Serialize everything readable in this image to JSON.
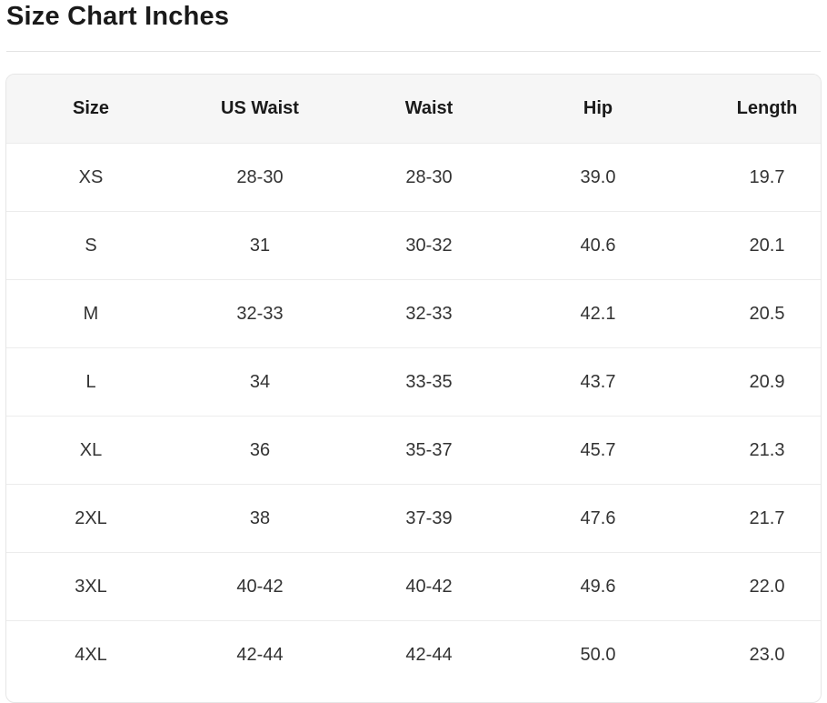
{
  "header": {
    "title": "Size Chart Inches"
  },
  "table": {
    "columns": [
      "Size",
      "US Waist",
      "Waist",
      "Hip",
      "Length"
    ],
    "rows": [
      [
        "XS",
        "28-30",
        "28-30",
        "39.0",
        "19.7"
      ],
      [
        "S",
        "31",
        "30-32",
        "40.6",
        "20.1"
      ],
      [
        "M",
        "32-33",
        "32-33",
        "42.1",
        "20.5"
      ],
      [
        "L",
        "34",
        "33-35",
        "43.7",
        "20.9"
      ],
      [
        "XL",
        "36",
        "35-37",
        "45.7",
        "21.3"
      ],
      [
        "2XL",
        "38",
        "37-39",
        "47.6",
        "21.7"
      ],
      [
        "3XL",
        "40-42",
        "40-42",
        "49.6",
        "22.0"
      ],
      [
        "4XL",
        "42-44",
        "42-44",
        "50.0",
        "23.0"
      ]
    ]
  }
}
